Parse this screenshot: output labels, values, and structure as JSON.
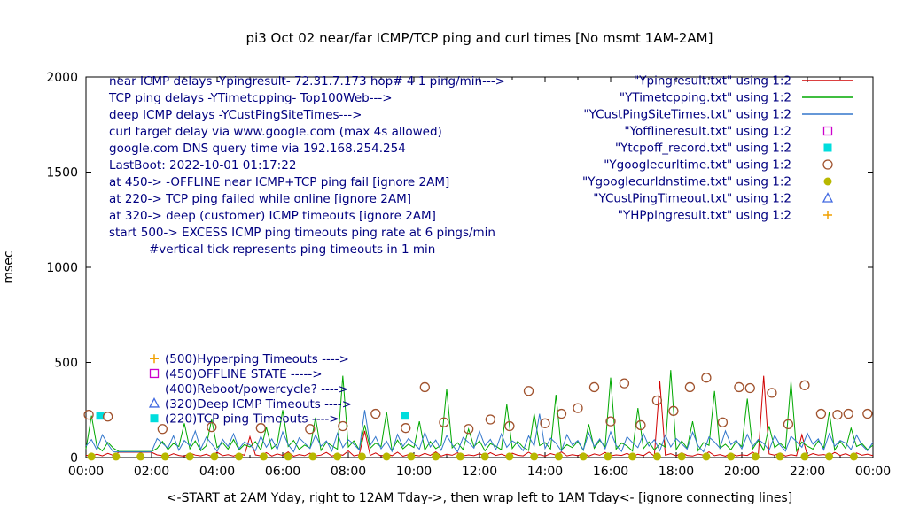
{
  "chart_data": {
    "type": "line",
    "title": "pi3 Oct 02  near/far ICMP/TCP ping and curl times [No msmt 1AM-2AM]",
    "xlabel": "<-START at 2AM Yday, right to 12AM Tday->, then wrap left to 1AM Tday<- [ignore connecting lines]",
    "ylabel": "msec",
    "xlim_minutes": [
      0,
      1440
    ],
    "ylim": [
      0,
      2000
    ],
    "y_ticks": [
      0,
      500,
      1000,
      1500,
      2000
    ],
    "x_tick_labels": [
      "00:00",
      "02:00",
      "04:00",
      "06:00",
      "08:00",
      "10:00",
      "12:00",
      "14:00",
      "16:00",
      "18:00",
      "20:00",
      "22:00",
      "00:00"
    ],
    "grid": false,
    "legend_position": "top-right-inside",
    "annotation_color": "#000080",
    "sample_step_minutes": 10,
    "series": [
      {
        "key": "ypingresult",
        "label": "\"Ypingresult.txt\" using 1:2",
        "type": "line",
        "color": "#d00000",
        "values": [
          12,
          7,
          18,
          9,
          22,
          11,
          28,
          28,
          28,
          28,
          28,
          28,
          28,
          14,
          10,
          8,
          20,
          11,
          7,
          24,
          13,
          9,
          17,
          6,
          28,
          10,
          15,
          8,
          21,
          12,
          110,
          14,
          9,
          26,
          8,
          19,
          11,
          30,
          7,
          16,
          10,
          23,
          9,
          13,
          27,
          8,
          18,
          12,
          35,
          9,
          15,
          140,
          11,
          24,
          8,
          19,
          10,
          28,
          7,
          16,
          13,
          9,
          22,
          11,
          30,
          8,
          17,
          12,
          25,
          9,
          14,
          10,
          20,
          8,
          26,
          11,
          18,
          7,
          23,
          12,
          9,
          28,
          10,
          16,
          8,
          21,
          13,
          30,
          9,
          15,
          10,
          24,
          8,
          19,
          12,
          27,
          9,
          14,
          11,
          22,
          7,
          17,
          10,
          29,
          8,
          400,
          12,
          20,
          9,
          25,
          11,
          8,
          18,
          13,
          30,
          10,
          16,
          7,
          23,
          9,
          14,
          11,
          28,
          9,
          430,
          19,
          12,
          24,
          8,
          15,
          10,
          120,
          9,
          21,
          13,
          16,
          9,
          27,
          11,
          20,
          8,
          24,
          12,
          18,
          10
        ]
      },
      {
        "key": "ytimetcpping",
        "label": "\"YTimetcpping.txt\" using 1:2",
        "type": "line",
        "color": "#00a800",
        "values": [
          45,
          220,
          60,
          35,
          80,
          50,
          32,
          32,
          32,
          32,
          32,
          32,
          32,
          48,
          85,
          42,
          75,
          58,
          180,
          46,
          88,
          36,
          62,
          200,
          52,
          78,
          44,
          95,
          40,
          68,
          56,
          84,
          39,
          160,
          47,
          72,
          250,
          58,
          90,
          43,
          66,
          50,
          210,
          37,
          81,
          62,
          44,
          430,
          55,
          88,
          41,
          170,
          49,
          76,
          58,
          240,
          36,
          92,
          46,
          70,
          53,
          190,
          39,
          84,
          47,
          65,
          360,
          51,
          78,
          42,
          150,
          57,
          88,
          35,
          73,
          60,
          41,
          280,
          48,
          86,
          54,
          37,
          230,
          63,
          79,
          45,
          330,
          40,
          68,
          52,
          85,
          38,
          175,
          49,
          91,
          56,
          420,
          44,
          77,
          61,
          34,
          260,
          47,
          83,
          39,
          72,
          55,
          460,
          42,
          88,
          50,
          190,
          36,
          79,
          64,
          350,
          48,
          70,
          41,
          85,
          57,
          310,
          45,
          90,
          38,
          165,
          52,
          76,
          49,
          400,
          35,
          82,
          60,
          44,
          88,
          51,
          240,
          39,
          86,
          47,
          155,
          58,
          73,
          42,
          65
        ]
      },
      {
        "key": "ycustpingsitetimes",
        "label": "\"YCustPingSiteTimes.txt\" using 1:2",
        "type": "line",
        "color": "#3377cc",
        "values": [
          60,
          95,
          40,
          120,
          70,
          30,
          30,
          30,
          30,
          30,
          30,
          30,
          30,
          100,
          75,
          50,
          115,
          38,
          90,
          62,
          140,
          44,
          108,
          72,
          33,
          96,
          58,
          125,
          47,
          82,
          66,
          36,
          112,
          54,
          98,
          42,
          135,
          68,
          30,
          104,
          76,
          48,
          118,
          60,
          88,
          34,
          128,
          52,
          94,
          70,
          40,
          250,
          64,
          110,
          46,
          86,
          32,
          122,
          58,
          100,
          74,
          44,
          132,
          56,
          92,
          38,
          116,
          68,
          30,
          106,
          80,
          50,
          138,
          62,
          96,
          42,
          124,
          54,
          88,
          70,
          36,
          114,
          60,
          230,
          48,
          102,
          76,
          34,
          120,
          66,
          90,
          40,
          130,
          58,
          98,
          46,
          136,
          64,
          32,
          110,
          78,
          52,
          126,
          60,
          94,
          36,
          118,
          56,
          100,
          72,
          44,
          134,
          62,
          30,
          108,
          82,
          50,
          140,
          68,
          92,
          46,
          122,
          58,
          96,
          74,
          38,
          116,
          66,
          34,
          112,
          84,
          54,
          128,
          70,
          98,
          40,
          126,
          60,
          90,
          76,
          42,
          118,
          64,
          36,
          80
        ]
      },
      {
        "key": "yofflineresult",
        "label": "\"Yofflineresult.txt\" using 1:2",
        "type": "scatter",
        "marker": "open-square",
        "color": "#cc00cc",
        "points": []
      },
      {
        "key": "ytcpoff-record",
        "label": "\"Ytcpoff_record.txt\" using 1:2",
        "type": "scatter",
        "marker": "filled-square",
        "color": "#00dddd",
        "points": [
          [
            26,
            220
          ],
          [
            584,
            220
          ]
        ]
      },
      {
        "key": "ygooglecurltime",
        "label": "\"Ygooglecurltime.txt\" using 1:2",
        "type": "scatter",
        "marker": "open-circle",
        "color": "#a0522d",
        "points": [
          [
            5,
            225
          ],
          [
            40,
            215
          ],
          [
            140,
            150
          ],
          [
            230,
            160
          ],
          [
            320,
            155
          ],
          [
            410,
            150
          ],
          [
            470,
            165
          ],
          [
            530,
            230
          ],
          [
            585,
            155
          ],
          [
            620,
            370
          ],
          [
            655,
            185
          ],
          [
            700,
            150
          ],
          [
            740,
            200
          ],
          [
            775,
            165
          ],
          [
            810,
            350
          ],
          [
            840,
            180
          ],
          [
            870,
            230
          ],
          [
            900,
            260
          ],
          [
            930,
            370
          ],
          [
            960,
            190
          ],
          [
            985,
            390
          ],
          [
            1015,
            170
          ],
          [
            1045,
            300
          ],
          [
            1075,
            245
          ],
          [
            1105,
            370
          ],
          [
            1135,
            420
          ],
          [
            1165,
            185
          ],
          [
            1195,
            370
          ],
          [
            1215,
            365
          ],
          [
            1255,
            340
          ],
          [
            1285,
            175
          ],
          [
            1315,
            380
          ],
          [
            1345,
            230
          ],
          [
            1375,
            225
          ],
          [
            1395,
            230
          ],
          [
            1430,
            230
          ]
        ]
      },
      {
        "key": "ygooglecurldnstime",
        "label": "\"Ygooglecurldnstime.txt\" using 1:2",
        "type": "scatter",
        "marker": "filled-circle",
        "color": "#b8b800",
        "points": [
          [
            10,
            5
          ],
          [
            55,
            5
          ],
          [
            100,
            5
          ],
          [
            145,
            5
          ],
          [
            190,
            5
          ],
          [
            235,
            5
          ],
          [
            280,
            5
          ],
          [
            325,
            5
          ],
          [
            370,
            5
          ],
          [
            415,
            5
          ],
          [
            460,
            5
          ],
          [
            505,
            5
          ],
          [
            550,
            5
          ],
          [
            595,
            5
          ],
          [
            640,
            5
          ],
          [
            685,
            5
          ],
          [
            730,
            5
          ],
          [
            775,
            5
          ],
          [
            820,
            5
          ],
          [
            865,
            5
          ],
          [
            910,
            5
          ],
          [
            955,
            5
          ],
          [
            1000,
            5
          ],
          [
            1045,
            5
          ],
          [
            1090,
            5
          ],
          [
            1135,
            5
          ],
          [
            1180,
            5
          ],
          [
            1225,
            5
          ],
          [
            1270,
            5
          ],
          [
            1315,
            5
          ],
          [
            1360,
            5
          ],
          [
            1405,
            5
          ]
        ]
      },
      {
        "key": "ycustpingtimeout",
        "label": "\"YCustPingTimeout.txt\" using 1:2",
        "type": "scatter",
        "marker": "open-triangle",
        "color": "#4169e1",
        "points": []
      },
      {
        "key": "yhppingresult",
        "label": "\"YHPpingresult.txt\" using 1:2",
        "type": "scatter",
        "marker": "plus",
        "color": "#f0a000",
        "points": []
      }
    ],
    "annotations": [
      {
        "text": "near ICMP delays -Ypingresult- 72.31.7.173 hop# 4 1 ping/min--->",
        "indent": false
      },
      {
        "text": "TCP ping delays -YTimetcpping- Top100Web--->",
        "indent": false
      },
      {
        "text": "deep ICMP delays -YCustPingSiteTimes--->",
        "indent": false
      },
      {
        "text": "curl target delay via www.google.com (max 4s allowed)",
        "indent": false
      },
      {
        "text": "google.com DNS query time via 192.168.254.254",
        "indent": false
      },
      {
        "text": "LastBoot: 2022-10-01 01:17:22",
        "indent": false
      },
      {
        "text": "at 450-> -OFFLINE near ICMP+TCP ping fail [ignore 2AM]",
        "indent": false
      },
      {
        "text": "at 220-> TCP ping failed while online [ignore 2AM]",
        "indent": false
      },
      {
        "text": "at 320-> deep (customer) ICMP timeouts [ignore 2AM]",
        "indent": false
      },
      {
        "text": "start 500-> EXCESS ICMP ping timeouts ping rate at 6 pings/min",
        "indent": false
      },
      {
        "text": "#vertical tick represents ping timeouts in 1 min",
        "indent": true
      }
    ],
    "marker_labels": [
      {
        "y_msec": 520,
        "marker": "plus",
        "color": "#f0a000",
        "text": "(500)Hyperping Timeouts ---->"
      },
      {
        "y_msec": 442,
        "marker": "open-square",
        "color": "#cc00cc",
        "text": "(450)OFFLINE STATE ----->"
      },
      {
        "y_msec": 363,
        "marker": null,
        "color": "#000080",
        "text": "(400)Reboot/powercycle? ---->"
      },
      {
        "y_msec": 284,
        "marker": "open-triangle",
        "color": "#4169e1",
        "text": "(320)Deep ICMP Timeouts ---->"
      },
      {
        "y_msec": 206,
        "marker": "filled-square",
        "color": "#00dddd",
        "text": "(220)TCP ping Timeouts ---->"
      }
    ]
  }
}
